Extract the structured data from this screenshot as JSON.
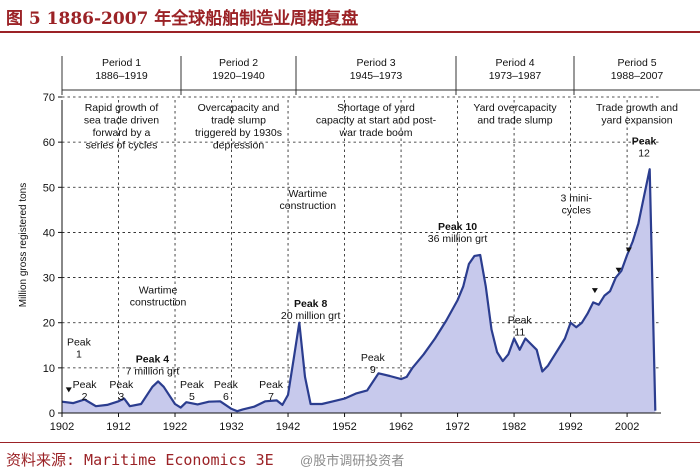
{
  "figure_title": "图 5   1886-2007 年全球船舶制造业周期复盘",
  "source": "资料来源: Maritime Economics 3E",
  "watermark": "@股市调研投资者",
  "colors": {
    "area_fill": "#c7c9ec",
    "line": "#2b3d8f",
    "grid": "#1a1a1a",
    "title": "#9b2226",
    "text": "#111111"
  },
  "chart_data": {
    "type": "area",
    "ylabel": "Million gross registered tons",
    "xlabel": "",
    "xlim": [
      1902,
      2008
    ],
    "ylim": [
      0,
      70
    ],
    "x_ticks": [
      1902,
      1912,
      1922,
      1932,
      1942,
      1952,
      1962,
      1972,
      1982,
      1992,
      2002
    ],
    "y_ticks": [
      0,
      10,
      20,
      30,
      40,
      50,
      60,
      70
    ],
    "grid": "dashed",
    "series": [
      {
        "x": [
          1902,
          1904,
          1906,
          1908,
          1910,
          1912,
          1913,
          1914,
          1916,
          1918,
          1919,
          1920,
          1922,
          1923,
          1924,
          1926,
          1928,
          1930,
          1932,
          1933,
          1934,
          1936,
          1938,
          1940,
          1941,
          1942,
          1943,
          1944,
          1945,
          1946,
          1948,
          1950,
          1952,
          1954,
          1956,
          1958,
          1960,
          1962,
          1963,
          1964,
          1966,
          1968,
          1970,
          1972,
          1973,
          1974,
          1975,
          1976,
          1977,
          1978,
          1979,
          1980,
          1981,
          1982,
          1983,
          1984,
          1986,
          1987,
          1988,
          1990,
          1991,
          1992,
          1993,
          1994,
          1995,
          1996,
          1997,
          1998,
          1999,
          2000,
          2001,
          2002,
          2003,
          2004,
          2005,
          2006,
          2007
        ],
        "values": [
          2.5,
          2.2,
          3.0,
          1.5,
          1.8,
          2.6,
          3.2,
          1.5,
          2.0,
          5.8,
          7.0,
          5.8,
          2.0,
          1.2,
          2.4,
          1.9,
          2.5,
          2.6,
          0.9,
          0.4,
          0.8,
          1.4,
          2.6,
          2.8,
          1.8,
          4.0,
          12.0,
          20.0,
          8.0,
          2.0,
          2.0,
          2.6,
          3.2,
          4.3,
          5.0,
          8.8,
          8.2,
          7.5,
          8.0,
          10.0,
          13.0,
          16.5,
          20.5,
          25.0,
          28.0,
          33.0,
          34.8,
          35.0,
          28.0,
          18.5,
          13.5,
          11.5,
          13.0,
          16.5,
          14.0,
          16.5,
          14.0,
          9.2,
          10.5,
          14.5,
          16.5,
          20.0,
          19.0,
          20.0,
          22.0,
          24.5,
          24.0,
          26.0,
          27.0,
          30.0,
          31.5,
          35.0,
          38.0,
          42.0,
          48.0,
          54.0,
          0.5
        ]
      }
    ],
    "periods": [
      {
        "name": "Period 1",
        "years": "1886–1919",
        "desc": [
          "Rapid growth of",
          "sea trade driven",
          "forward by a",
          "series of cycles"
        ]
      },
      {
        "name": "Period 2",
        "years": "1920–1940",
        "desc": [
          "Overcapacity and",
          "trade slump",
          "triggered by 1930s",
          "depression"
        ]
      },
      {
        "name": "Period 3",
        "years": "1945–1973",
        "desc": [
          "Shortage of yard",
          "capacity at start and post-",
          "war trade boom"
        ]
      },
      {
        "name": "Period 4",
        "years": "1973–1987",
        "desc": [
          "Yard overcapacity",
          "and trade slump"
        ]
      },
      {
        "name": "Period 5",
        "years": "1988–2007",
        "desc": [
          "Trade growth and",
          "yard expansion"
        ]
      }
    ],
    "annotations": [
      {
        "id": "peak1",
        "lines": [
          "Peak",
          "1"
        ],
        "bold": false,
        "x": 1905,
        "y": 15
      },
      {
        "id": "peak2",
        "lines": [
          "Peak",
          "2"
        ],
        "bold": false,
        "x": 1906,
        "y": 5.5
      },
      {
        "id": "peak3",
        "lines": [
          "Peak",
          "3"
        ],
        "bold": false,
        "x": 1912.5,
        "y": 5.5
      },
      {
        "id": "peak4",
        "lines": [
          "Peak 4",
          "7 million grt"
        ],
        "bold": true,
        "x": 1918,
        "y": 11.2
      },
      {
        "id": "peak5",
        "lines": [
          "Peak",
          "5"
        ],
        "bold": false,
        "x": 1925,
        "y": 5.5
      },
      {
        "id": "peak6",
        "lines": [
          "Peak",
          "6"
        ],
        "bold": false,
        "x": 1931,
        "y": 5.5
      },
      {
        "id": "peak7",
        "lines": [
          "Peak",
          "7"
        ],
        "bold": false,
        "x": 1939,
        "y": 5.5
      },
      {
        "id": "peak8",
        "lines": [
          "Peak 8",
          "20 million grt"
        ],
        "bold": true,
        "x": 1946,
        "y": 23.5
      },
      {
        "id": "peak9",
        "lines": [
          "Peak",
          "9"
        ],
        "bold": false,
        "x": 1957,
        "y": 11.5
      },
      {
        "id": "peak10",
        "lines": [
          "Peak 10",
          "36 million grt"
        ],
        "bold": true,
        "x": 1972,
        "y": 40.5
      },
      {
        "id": "peak11",
        "lines": [
          "Peak",
          "11"
        ],
        "bold": false,
        "x": 1983,
        "y": 19.8
      },
      {
        "id": "peak12",
        "lines": [
          "Peak",
          "12"
        ],
        "bold": true,
        "x": 2005,
        "y": 59.5
      },
      {
        "id": "wartime1",
        "lines": [
          "Wartime",
          "construction"
        ],
        "bold": false,
        "x": 1919,
        "y": 26.5
      },
      {
        "id": "wartime2",
        "lines": [
          "Wartime",
          "construction"
        ],
        "bold": false,
        "x": 1945.5,
        "y": 47.8
      },
      {
        "id": "minicycles",
        "lines": [
          "3 mini-",
          "cycles"
        ],
        "bold": false,
        "x": 1993,
        "y": 46.8
      }
    ]
  }
}
